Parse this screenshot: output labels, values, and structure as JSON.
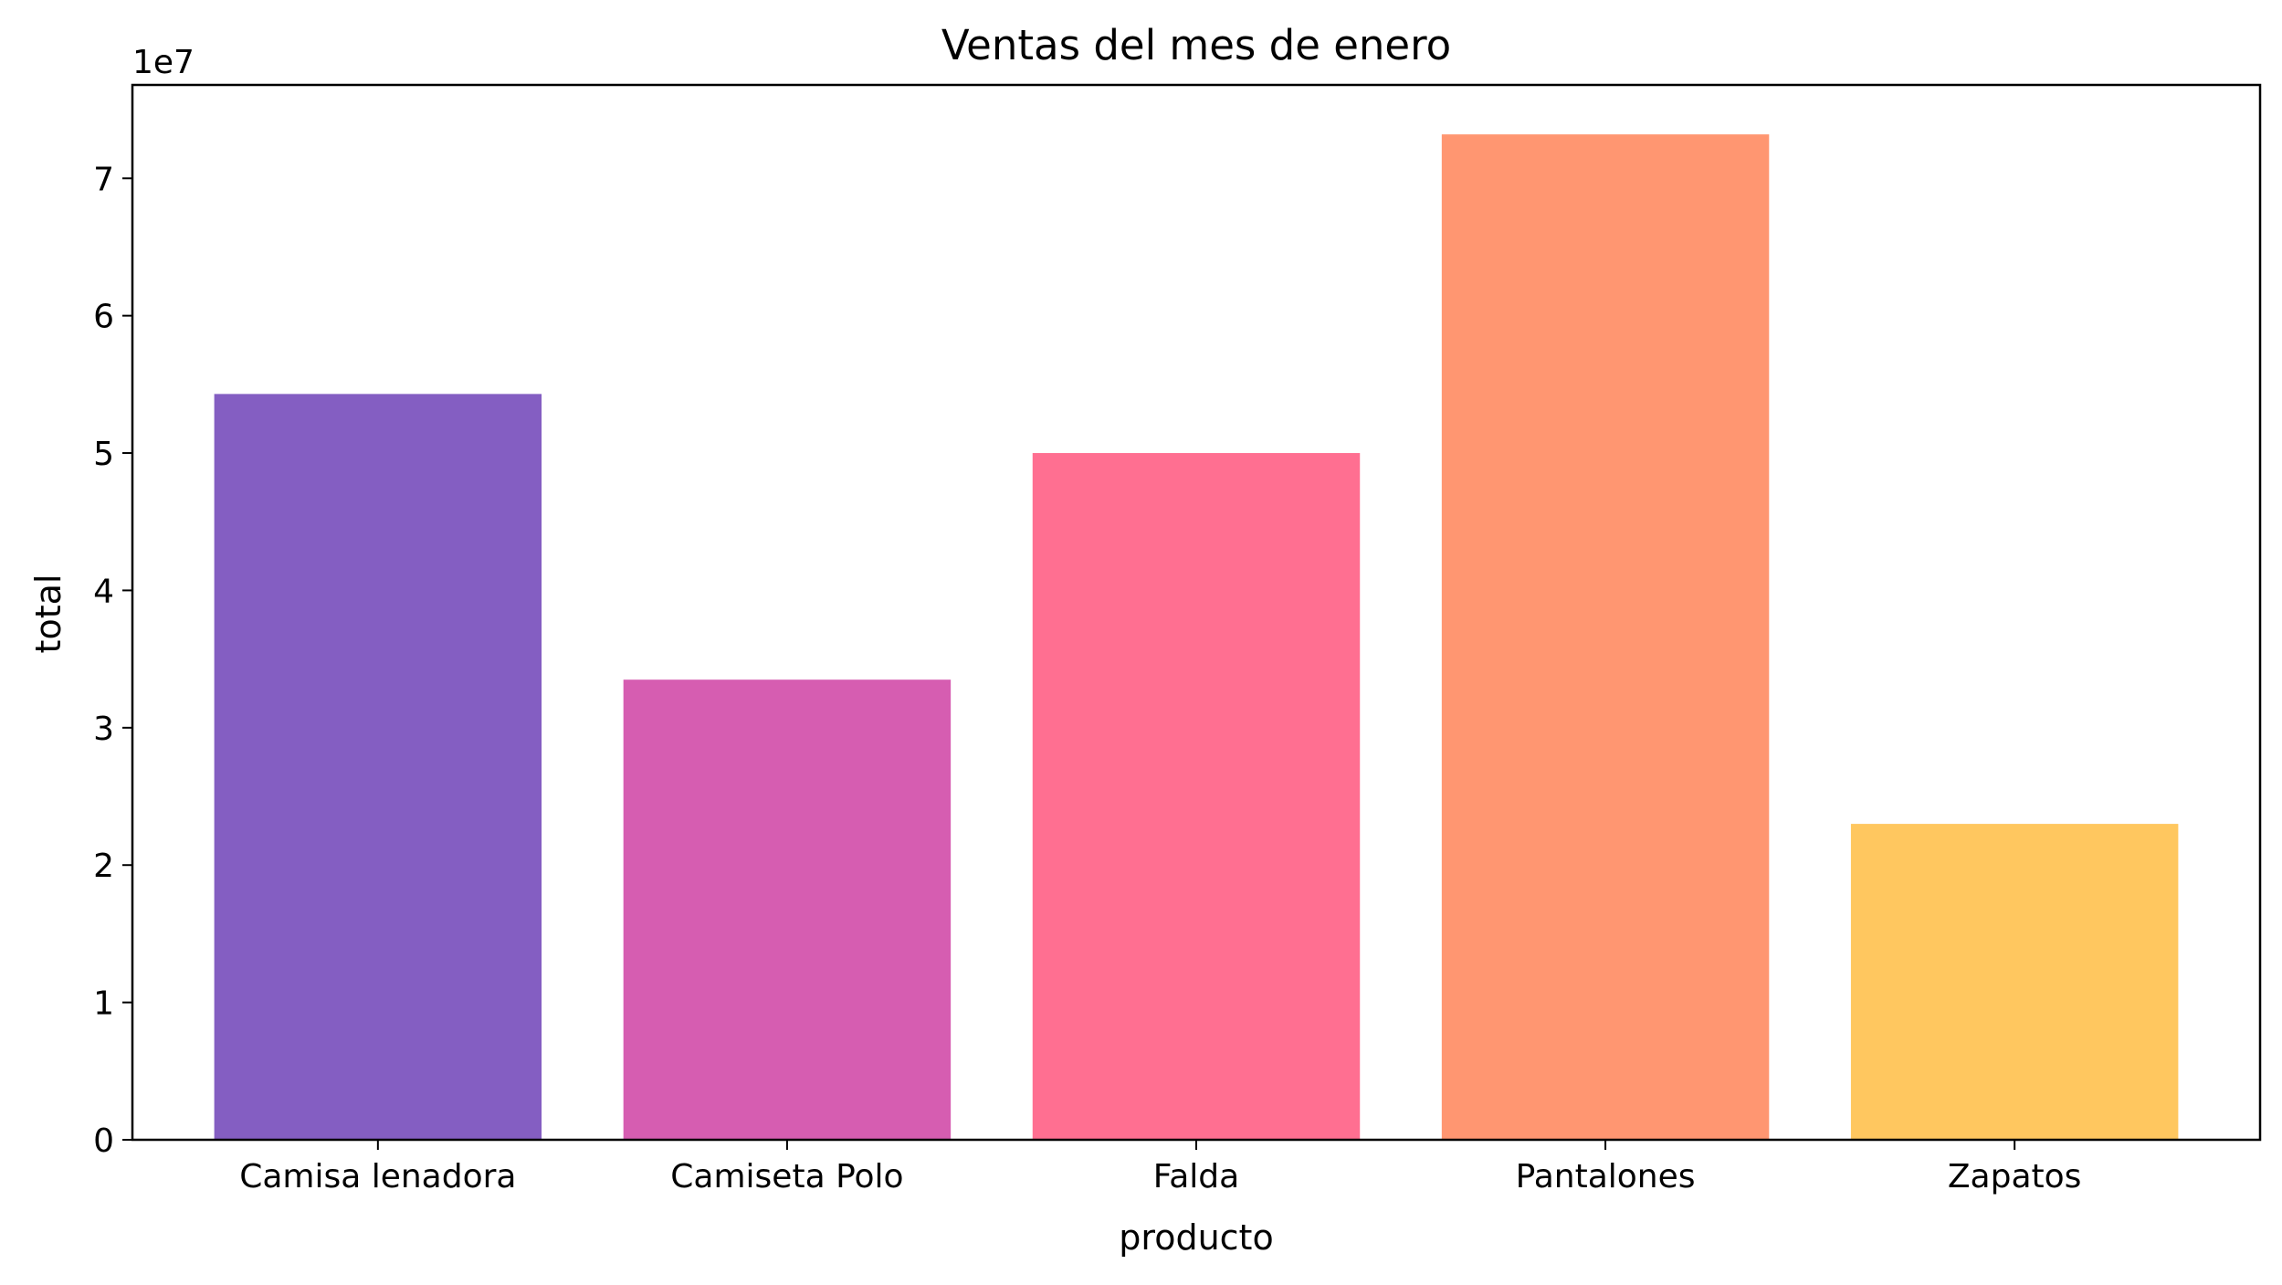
{
  "chart_data": {
    "type": "bar",
    "title": "Ventas del mes de enero",
    "xlabel": "producto",
    "ylabel": "total",
    "offset_label": "1e7",
    "categories": [
      "Camisa lenadora",
      "Camiseta Polo",
      "Falda",
      "Pantalones",
      "Zapatos"
    ],
    "values": [
      54300000,
      33500000,
      50000000,
      73200000,
      23000000
    ],
    "colors": [
      "#845EC2",
      "#D65DB1",
      "#FF6F91",
      "#FF9671",
      "#FFC75F"
    ],
    "ylim": [
      0,
      76800000
    ],
    "y_ticks": [
      0,
      1,
      2,
      3,
      4,
      5,
      6,
      7
    ],
    "y_tick_scale": 10000000,
    "grid": false,
    "legend": "none"
  }
}
